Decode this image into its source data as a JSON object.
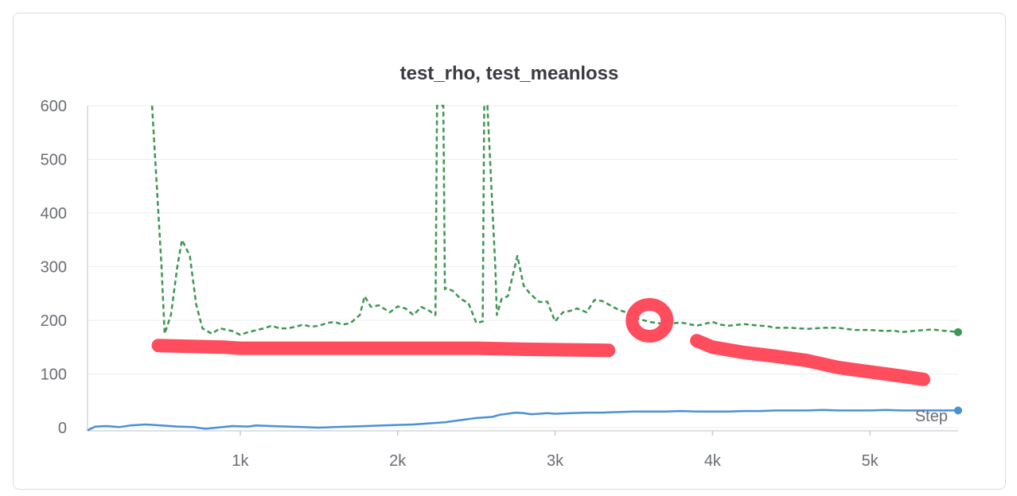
{
  "chart_data": {
    "type": "line",
    "title": "test_rho, test_meanloss",
    "xlabel": "Step",
    "ylabel": "",
    "xlim": [
      30,
      5560
    ],
    "ylim": [
      0,
      600
    ],
    "x_ticks": [
      1000,
      2000,
      3000,
      4000,
      5000
    ],
    "x_tick_labels": [
      "1k",
      "2k",
      "3k",
      "4k",
      "5k"
    ],
    "y_ticks": [
      0,
      100,
      200,
      300,
      400,
      500,
      600
    ],
    "y_tick_labels": [
      "0",
      "100",
      "200",
      "300",
      "400",
      "500",
      "600"
    ],
    "grid": true,
    "series": [
      {
        "color": "#4a90d9",
        "style": "solid",
        "x": [
          30,
          80,
          150,
          230,
          300,
          400,
          450,
          500,
          600,
          700,
          780,
          850,
          950,
          1050,
          1100,
          1200,
          1300,
          1400,
          1500,
          1600,
          1700,
          1800,
          1900,
          2000,
          2100,
          2200,
          2300,
          2400,
          2500,
          2600,
          2650,
          2700,
          2750,
          2800,
          2850,
          2900,
          2950,
          3000,
          3100,
          3200,
          3300,
          3400,
          3500,
          3600,
          3700,
          3800,
          3900,
          4000,
          4100,
          4200,
          4300,
          4400,
          4500,
          4600,
          4700,
          4800,
          4900,
          5000,
          5100,
          5200,
          5300,
          5400,
          5500,
          5560
        ],
        "y": [
          -5,
          2,
          3,
          1,
          4,
          6,
          5,
          4,
          2,
          1,
          -2,
          0,
          3,
          2,
          4,
          3,
          2,
          1,
          0,
          1,
          2,
          3,
          4,
          5,
          6,
          8,
          10,
          14,
          18,
          20,
          24,
          26,
          28,
          27,
          25,
          26,
          27,
          26,
          27,
          28,
          28,
          29,
          30,
          30,
          30,
          31,
          30,
          30,
          30,
          31,
          31,
          32,
          32,
          32,
          33,
          32,
          32,
          32,
          33,
          32,
          32,
          32,
          32,
          32
        ],
        "end_marker": true
      },
      {
        "color": "#3d9651",
        "style": "dashed",
        "x": [
          440,
          500,
          520,
          560,
          600,
          630,
          680,
          720,
          760,
          820,
          870,
          950,
          1000,
          1050,
          1150,
          1200,
          1250,
          1300,
          1350,
          1400,
          1450,
          1500,
          1550,
          1600,
          1650,
          1700,
          1760,
          1790,
          1830,
          1880,
          1950,
          2000,
          2050,
          2100,
          2150,
          2200,
          2240,
          2250,
          2290,
          2300,
          2310,
          2350,
          2400,
          2450,
          2500,
          2540,
          2550,
          2570,
          2620,
          2630,
          2660,
          2700,
          2760,
          2800,
          2840,
          2900,
          2950,
          3000,
          3020,
          3050,
          3100,
          3140,
          3200,
          3250,
          3300,
          3400,
          3450,
          3500,
          3600,
          3700,
          3800,
          3900,
          4000,
          4050,
          4100,
          4200,
          4300,
          4350,
          4400,
          4500,
          4600,
          4700,
          4800,
          4900,
          5000,
          5100,
          5150,
          5200,
          5300,
          5400,
          5450,
          5500,
          5560
        ],
        "y": [
          600,
          300,
          175,
          210,
          300,
          350,
          320,
          230,
          185,
          175,
          185,
          180,
          173,
          178,
          185,
          190,
          185,
          185,
          188,
          192,
          188,
          190,
          195,
          197,
          192,
          195,
          210,
          245,
          225,
          228,
          215,
          226,
          222,
          210,
          225,
          218,
          210,
          600,
          600,
          258,
          260,
          255,
          240,
          232,
          195,
          198,
          600,
          600,
          300,
          210,
          240,
          245,
          320,
          265,
          250,
          234,
          235,
          198,
          205,
          215,
          218,
          222,
          215,
          238,
          236,
          220,
          215,
          205,
          197,
          193,
          196,
          190,
          197,
          192,
          190,
          193,
          190,
          189,
          186,
          186,
          184,
          186,
          186,
          182,
          182,
          180,
          181,
          178,
          181,
          183,
          181,
          180,
          178
        ],
        "end_marker": true
      }
    ],
    "annotations": [
      {
        "type": "hand-drawn-stroke",
        "color": "#ff4d5e",
        "x": [
          480,
          900,
          1000,
          2500,
          2800,
          3340
        ],
        "y": [
          153,
          150,
          148,
          148,
          146,
          144
        ]
      },
      {
        "type": "hand-drawn-circle",
        "color": "#ff4d5e",
        "x": [
          3600
        ],
        "y": [
          200
        ]
      },
      {
        "type": "hand-drawn-stroke",
        "color": "#ff4d5e",
        "x": [
          3900,
          4000,
          4200,
          4400,
          4600,
          4800,
          5000,
          5200,
          5340
        ],
        "y": [
          162,
          150,
          140,
          133,
          125,
          112,
          104,
          96,
          90
        ]
      }
    ]
  }
}
